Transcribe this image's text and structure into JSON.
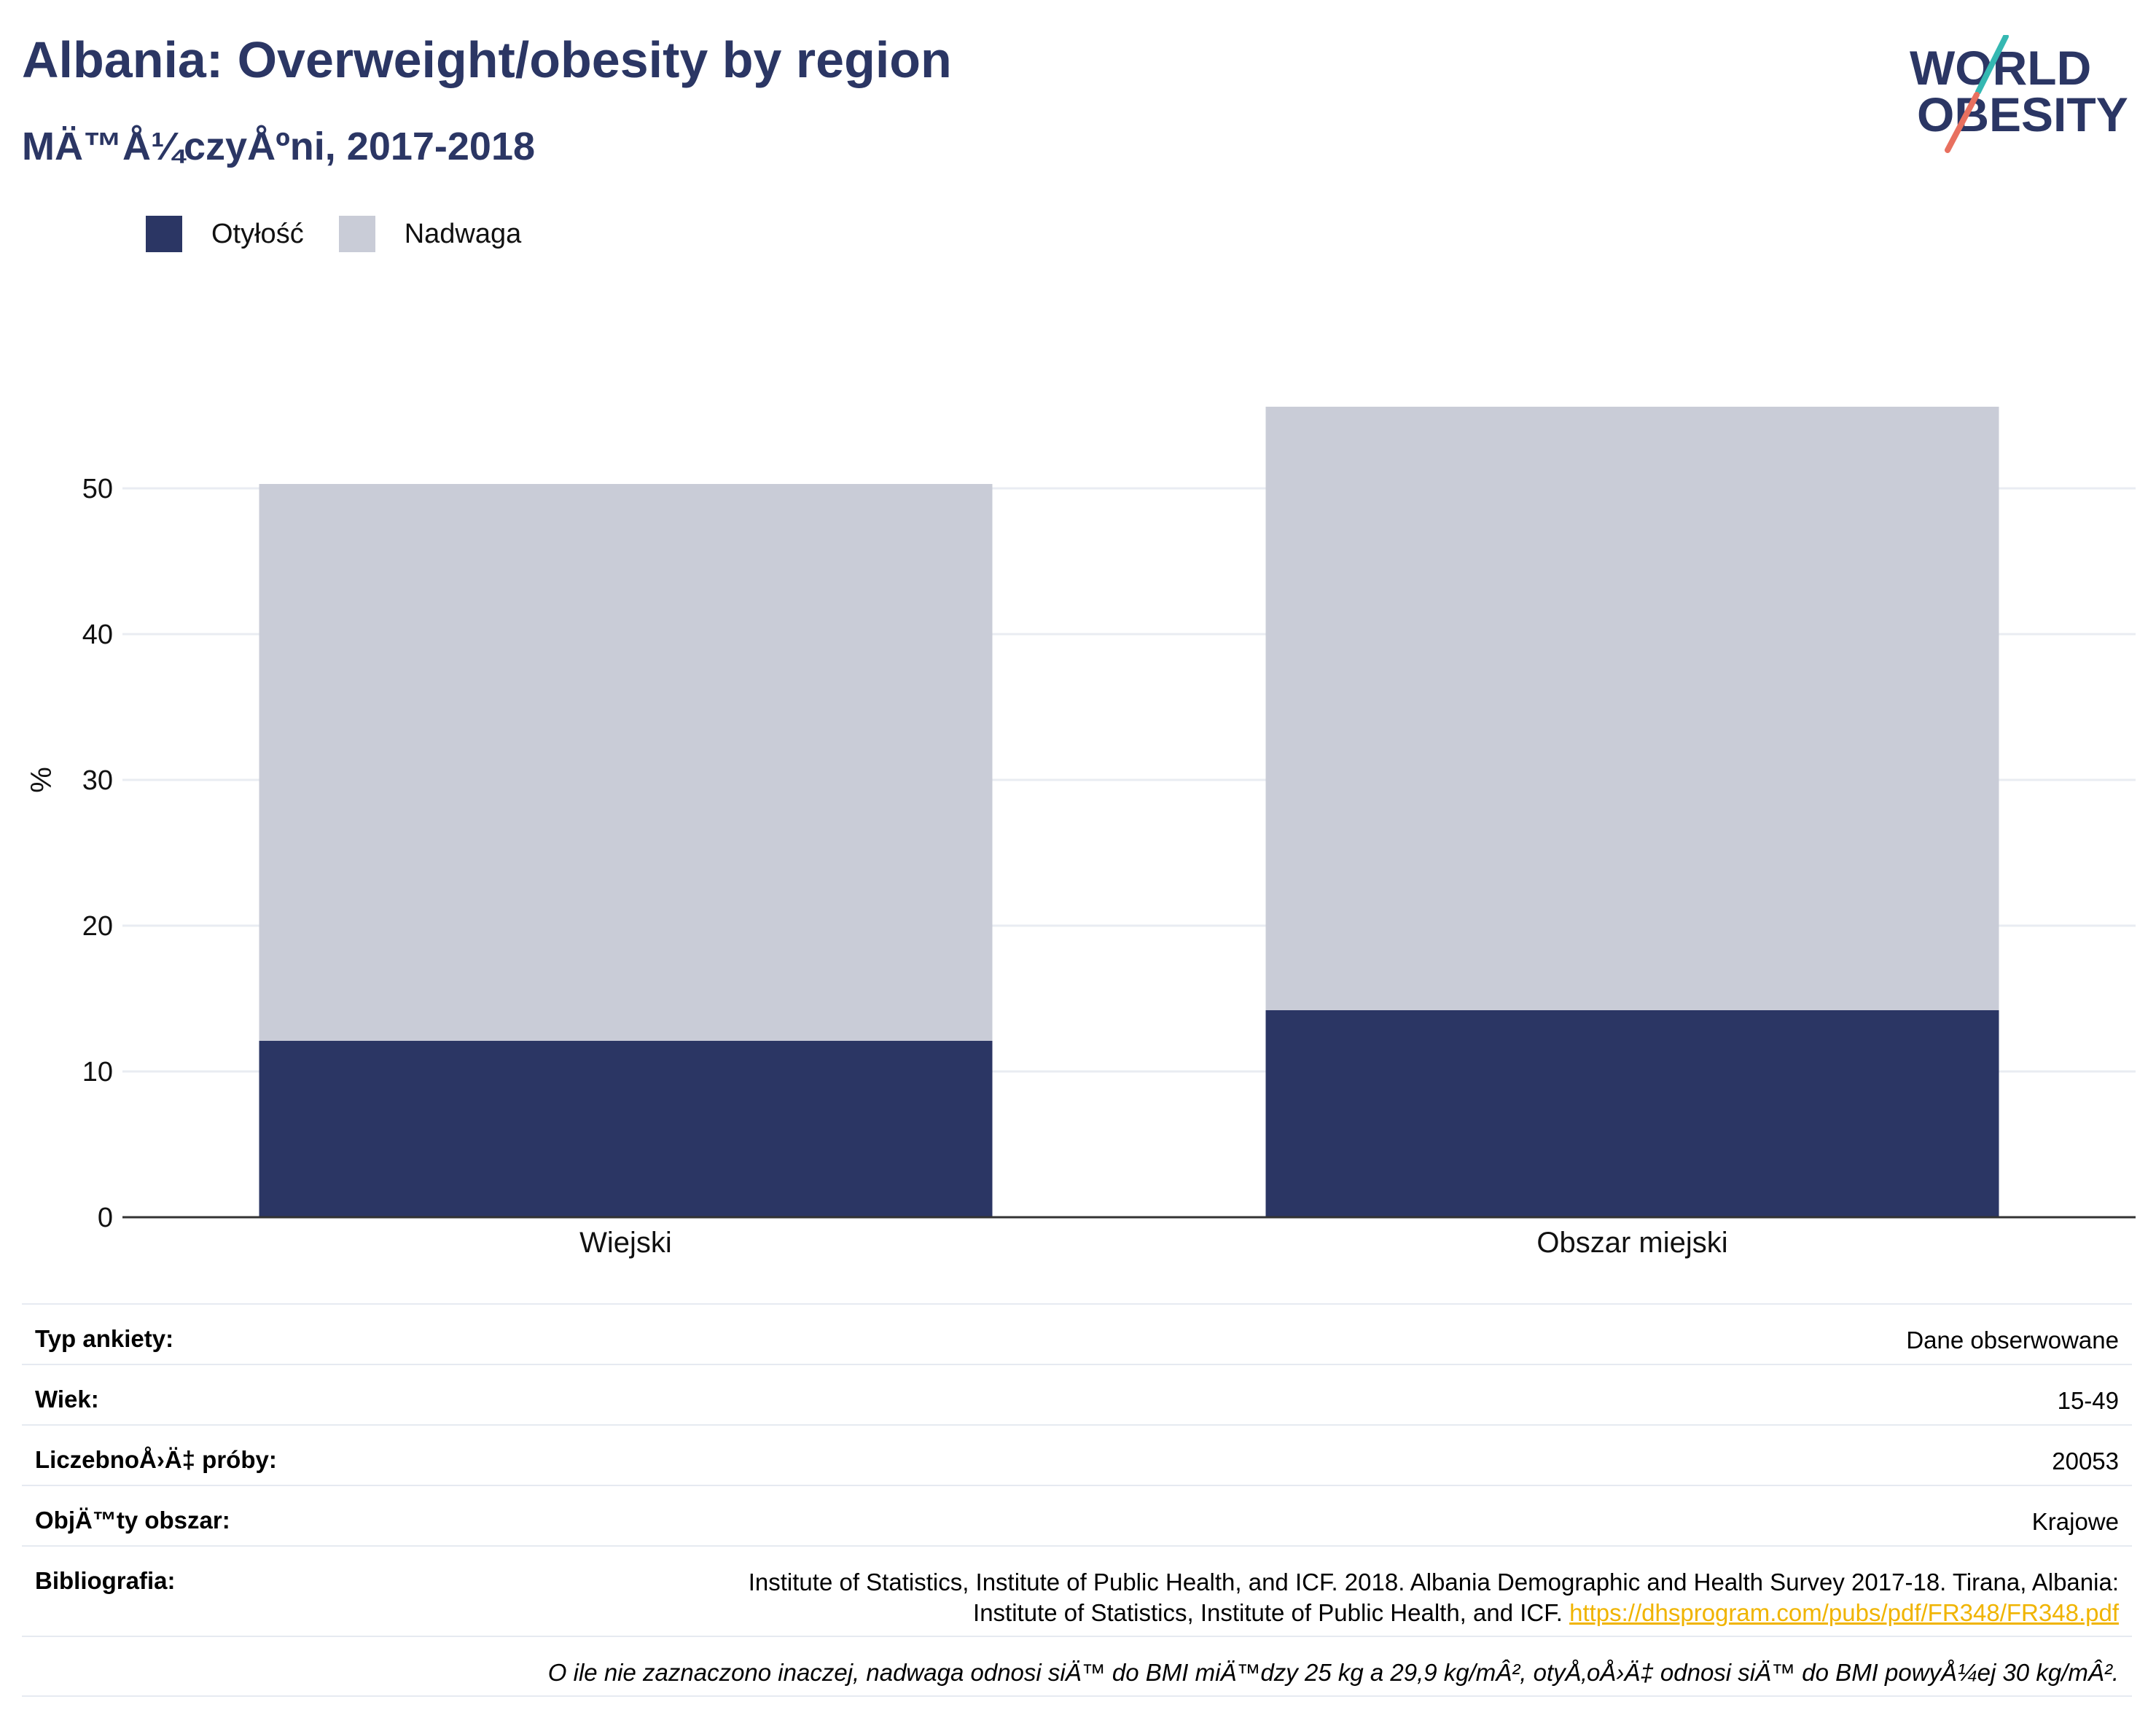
{
  "header": {
    "title": "Albania: Overweight/obesity by region",
    "subtitle": "MÄ™Å¼czyÅºni, 2017-2018"
  },
  "logo": {
    "line1": "WORLD",
    "line2": "OBESITY"
  },
  "legend": [
    {
      "label": "Otyłość",
      "color": "#2b3664"
    },
    {
      "label": "Nadwaga",
      "color": "#c9ccd7"
    }
  ],
  "chart_data": {
    "type": "bar",
    "stacked": true,
    "categories": [
      "Wiejski",
      "Obszar miejski"
    ],
    "series": [
      {
        "name": "Otyłość",
        "values": [
          12.1,
          14.2
        ],
        "color": "#2b3664"
      },
      {
        "name": "Nadwaga",
        "values": [
          38.2,
          41.4
        ],
        "color": "#c9ccd7"
      }
    ],
    "ylabel": "%",
    "ylim": [
      0,
      60
    ],
    "yticks": [
      0,
      10,
      20,
      30,
      40,
      50
    ],
    "grid": true,
    "legend_position": "top-left"
  },
  "info": {
    "survey_type": {
      "label": "Typ ankiety:",
      "value": "Dane obserwowane"
    },
    "age": {
      "label": "Wiek:",
      "value": "15-49"
    },
    "sample": {
      "label": "LiczebnoÅ›Ä‡ próby:",
      "value": "20053"
    },
    "area": {
      "label": "ObjÄ™ty obszar:",
      "value": "Krajowe"
    },
    "bibliography": {
      "label": "Bibliografia:",
      "line1": "Institute of Statistics, Institute of Public Health, and ICF. 2018. Albania Demographic and Health Survey 2017-18. Tirana, Albania:",
      "line2": "Institute of Statistics, Institute of Public Health, and ICF.",
      "link": "https://dhsprogram.com/pubs/pdf/FR348/FR348.pdf"
    },
    "footnote": "O ile nie zaznaczono inaczej, nadwaga odnosi siÄ™ do BMI miÄ™dzy 25 kg a 29,9 kg/mÂ², otyÅ‚oÅ›Ä‡ odnosi siÄ™ do BMI powyÅ¼ej 30 kg/mÂ²."
  }
}
